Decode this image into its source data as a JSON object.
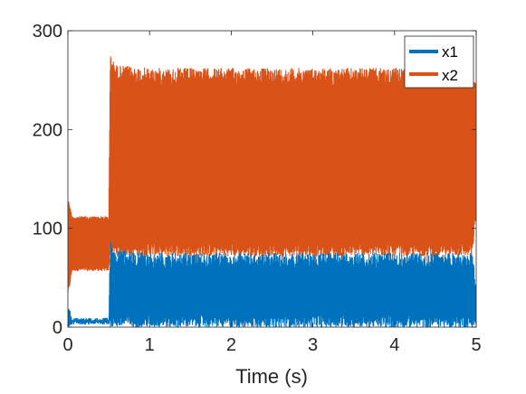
{
  "chart_data": {
    "type": "line",
    "xlabel": "Time (s)",
    "ylabel": "",
    "xlim": [
      0,
      5
    ],
    "ylim": [
      0,
      300
    ],
    "xticks": [
      0,
      1,
      2,
      3,
      4,
      5
    ],
    "yticks": [
      0,
      100,
      200,
      300
    ],
    "xtick_labels": [
      "0",
      "1",
      "2",
      "3",
      "4",
      "5"
    ],
    "ytick_labels": [
      "0",
      "100",
      "200",
      "300"
    ],
    "legend_position": "top-right",
    "grid": false,
    "series": [
      {
        "name": "x2",
        "color": "#d95319",
        "description_points": {
          "x": [
            0,
            0.02,
            0.05,
            0.1,
            0.2,
            0.3,
            0.4,
            0.5,
            0.52,
            0.55,
            0.6,
            1.0,
            1.5,
            2.0,
            2.5,
            3.0,
            3.5,
            4.0,
            4.5,
            4.95,
            5.0
          ],
          "y_upper": [
            130,
            125,
            112,
            112,
            112,
            112,
            112,
            112,
            278,
            270,
            265,
            262,
            262,
            262,
            262,
            262,
            262,
            262,
            262,
            260,
            245
          ],
          "y_lower": [
            35,
            40,
            57,
            57,
            57,
            57,
            57,
            57,
            80,
            75,
            72,
            72,
            72,
            72,
            72,
            72,
            72,
            72,
            72,
            72,
            110
          ]
        }
      },
      {
        "name": "x1",
        "color": "#0072bd",
        "description_points": {
          "x": [
            0,
            0.02,
            0.05,
            0.1,
            0.2,
            0.3,
            0.4,
            0.5,
            0.52,
            0.55,
            0.6,
            1.0,
            1.5,
            2.0,
            2.5,
            3.0,
            3.5,
            4.0,
            4.5,
            4.95,
            5.0
          ],
          "y_upper": [
            20,
            18,
            9,
            9,
            9,
            9,
            9,
            9,
            88,
            85,
            78,
            75,
            75,
            75,
            75,
            75,
            75,
            75,
            75,
            75,
            45
          ],
          "y_lower": [
            0,
            0,
            3,
            3,
            3,
            3,
            3,
            3,
            0,
            0,
            0,
            0,
            0,
            0,
            0,
            0,
            0,
            0,
            0,
            0,
            0
          ]
        }
      }
    ]
  }
}
